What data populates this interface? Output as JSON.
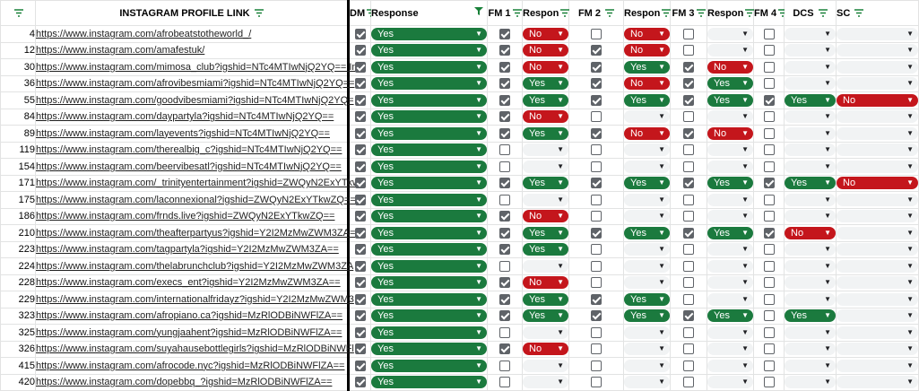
{
  "headers": {
    "num": "",
    "link": "INSTAGRAM PROFILE LINK",
    "dm": "DM",
    "response": "Response",
    "fm1": "FM 1",
    "resp1": "Respon",
    "fm2": "FM 2",
    "resp2": "Respon",
    "fm3": "FM 3",
    "resp3": "Respon",
    "fm4": "FM 4",
    "dcs": "DCS",
    "sc": "SC"
  },
  "labels": {
    "yes": "Yes",
    "no": "No"
  },
  "rows": [
    {
      "n": "4",
      "link": "https://www.instagram.com/afrobeatstotheworld_/",
      "dm": true,
      "r": "Yes",
      "fm1": true,
      "r1": "No",
      "fm2": false,
      "r2": "No",
      "fm3": false,
      "r3": "",
      "fm4": false,
      "dcs": "",
      "sc": ""
    },
    {
      "n": "12",
      "link": "https://www.instagram.com/amafestuk/",
      "dm": true,
      "r": "Yes",
      "fm1": true,
      "r1": "No",
      "fm2": true,
      "r2": "No",
      "fm3": false,
      "r3": "",
      "fm4": false,
      "dcs": "",
      "sc": ""
    },
    {
      "n": "30",
      "link": "https://www.instagram.com/mimosa_club?igshid=NTc4MTIwNjQ2YQ== In",
      "dm": true,
      "r": "Yes",
      "fm1": true,
      "r1": "No",
      "fm2": true,
      "r2": "Yes",
      "fm3": true,
      "r3": "No",
      "fm4": false,
      "dcs": "",
      "sc": ""
    },
    {
      "n": "36",
      "link": "https://www.instagram.com/afrovibesmiami?igshid=NTc4MTIwNjQ2YQ==",
      "dm": true,
      "r": "Yes",
      "fm1": true,
      "r1": "Yes",
      "fm2": true,
      "r2": "No",
      "fm3": true,
      "r3": "Yes",
      "fm4": false,
      "dcs": "",
      "sc": ""
    },
    {
      "n": "55",
      "link": "https://www.instagram.com/goodvibesmiami?igshid=NTc4MTIwNjQ2YQ=",
      "dm": true,
      "r": "Yes",
      "fm1": true,
      "r1": "Yes",
      "fm2": true,
      "r2": "Yes",
      "fm3": true,
      "r3": "Yes",
      "fm4": true,
      "dcs": "Yes",
      "sc": "No"
    },
    {
      "n": "84",
      "link": "https://www.instagram.com/daypartyla?igshid=NTc4MTIwNjQ2YQ==",
      "dm": true,
      "r": "Yes",
      "fm1": true,
      "r1": "No",
      "fm2": false,
      "r2": "",
      "fm3": false,
      "r3": "",
      "fm4": false,
      "dcs": "",
      "sc": ""
    },
    {
      "n": "89",
      "link": "https://www.instagram.com/layevents?igshid=NTc4MTIwNjQ2YQ==",
      "dm": true,
      "r": "Yes",
      "fm1": true,
      "r1": "Yes",
      "fm2": true,
      "r2": "No",
      "fm3": true,
      "r3": "No",
      "fm4": false,
      "dcs": "",
      "sc": ""
    },
    {
      "n": "119",
      "link": "https://www.instagram.com/therealbig_c?igshid=NTc4MTIwNjQ2YQ==",
      "dm": true,
      "r": "Yes",
      "fm1": false,
      "r1": "",
      "fm2": false,
      "r2": "",
      "fm3": false,
      "r3": "",
      "fm4": false,
      "dcs": "",
      "sc": ""
    },
    {
      "n": "154",
      "link": "https://www.instagram.com/beervibesatl?igshid=NTc4MTIwNjQ2YQ==",
      "dm": true,
      "r": "Yes",
      "fm1": false,
      "r1": "",
      "fm2": false,
      "r2": "",
      "fm3": false,
      "r3": "",
      "fm4": false,
      "dcs": "",
      "sc": ""
    },
    {
      "n": "171",
      "link": "https://www.instagram.com/_trinityentertainment?igshid=ZWQyN2ExYTkw",
      "dm": true,
      "r": "Yes",
      "fm1": true,
      "r1": "Yes",
      "fm2": true,
      "r2": "Yes",
      "fm3": true,
      "r3": "Yes",
      "fm4": true,
      "dcs": "Yes",
      "sc": "No"
    },
    {
      "n": "175",
      "link": "https://www.instagram.com/laconnexional?igshid=ZWQyN2ExYTkwZQ==",
      "dm": true,
      "r": "Yes",
      "fm1": false,
      "r1": "",
      "fm2": false,
      "r2": "",
      "fm3": false,
      "r3": "",
      "fm4": false,
      "dcs": "",
      "sc": ""
    },
    {
      "n": "186",
      "link": "https://www.instagram.com/frnds.live?igshid=ZWQyN2ExYTkwZQ==",
      "dm": true,
      "r": "Yes",
      "fm1": true,
      "r1": "No",
      "fm2": false,
      "r2": "",
      "fm3": false,
      "r3": "",
      "fm4": false,
      "dcs": "",
      "sc": ""
    },
    {
      "n": "210",
      "link": "https://www.instagram.com/theafterpartyus?igshid=Y2I2MzMwZWM3ZA=",
      "dm": true,
      "r": "Yes",
      "fm1": true,
      "r1": "Yes",
      "fm2": true,
      "r2": "Yes",
      "fm3": true,
      "r3": "Yes",
      "fm4": true,
      "dcs": "No",
      "sc": ""
    },
    {
      "n": "223",
      "link": "https://www.instagram.com/tagpartyla?igshid=Y2I2MzMwZWM3ZA==",
      "dm": true,
      "r": "Yes",
      "fm1": true,
      "r1": "Yes",
      "fm2": false,
      "r2": "",
      "fm3": false,
      "r3": "",
      "fm4": false,
      "dcs": "",
      "sc": ""
    },
    {
      "n": "224",
      "link": "https://www.instagram.com/thelabrunchclub?igshid=Y2I2MzMwZWM3ZA",
      "dm": true,
      "r": "Yes",
      "fm1": false,
      "r1": "",
      "fm2": false,
      "r2": "",
      "fm3": false,
      "r3": "",
      "fm4": false,
      "dcs": "",
      "sc": ""
    },
    {
      "n": "228",
      "link": "https://www.instagram.com/execs_ent?igshid=Y2I2MzMwZWM3ZA==",
      "dm": true,
      "r": "Yes",
      "fm1": true,
      "r1": "No",
      "fm2": false,
      "r2": "",
      "fm3": false,
      "r3": "",
      "fm4": false,
      "dcs": "",
      "sc": ""
    },
    {
      "n": "229",
      "link": "https://www.instagram.com/internationalfridayz?igshid=Y2I2MzMwZWM3",
      "dm": true,
      "r": "Yes",
      "fm1": true,
      "r1": "Yes",
      "fm2": true,
      "r2": "Yes",
      "fm3": false,
      "r3": "",
      "fm4": false,
      "dcs": "",
      "sc": ""
    },
    {
      "n": "323",
      "link": "https://www.instagram.com/afropiano.ca?igshid=MzRlODBiNWFlZA==",
      "dm": true,
      "r": "Yes",
      "fm1": true,
      "r1": "Yes",
      "fm2": true,
      "r2": "Yes",
      "fm3": true,
      "r3": "Yes",
      "fm4": false,
      "dcs": "Yes",
      "sc": ""
    },
    {
      "n": "325",
      "link": "https://www.instagram.com/yungjaahent?igshid=MzRlODBiNWFlZA==",
      "dm": true,
      "r": "Yes",
      "fm1": false,
      "r1": "",
      "fm2": false,
      "r2": "",
      "fm3": false,
      "r3": "",
      "fm4": false,
      "dcs": "",
      "sc": ""
    },
    {
      "n": "326",
      "link": "https://www.instagram.com/suyahausebottlegirls?igshid=MzRlODBiNWFl",
      "dm": true,
      "r": "Yes",
      "fm1": true,
      "r1": "No",
      "fm2": false,
      "r2": "",
      "fm3": false,
      "r3": "",
      "fm4": false,
      "dcs": "",
      "sc": ""
    },
    {
      "n": "415",
      "link": "https://www.instagram.com/afrocode.nyc?igshid=MzRlODBiNWFlZA==",
      "dm": true,
      "r": "Yes",
      "fm1": false,
      "r1": "",
      "fm2": false,
      "r2": "",
      "fm3": false,
      "r3": "",
      "fm4": false,
      "dcs": "",
      "sc": ""
    },
    {
      "n": "420",
      "link": "https://www.instagram.com/dopebbq_?igshid=MzRlODBiNWFlZA==",
      "dm": true,
      "r": "Yes",
      "fm1": false,
      "r1": "",
      "fm2": false,
      "r2": "",
      "fm3": false,
      "r3": "",
      "fm4": false,
      "dcs": "",
      "sc": ""
    }
  ],
  "colors": {
    "yes": "#1b7a3e",
    "no": "#c4161c",
    "empty": "#f1f3f4",
    "filter": "#188038"
  },
  "icons": {
    "filter": "filter-icon",
    "dropdown": "dropdown-arrow-icon",
    "checkbox": "checkbox-icon"
  }
}
